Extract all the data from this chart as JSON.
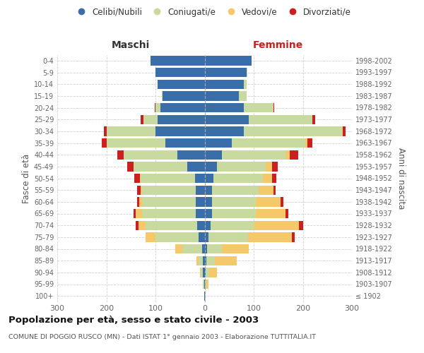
{
  "age_groups": [
    "100+",
    "95-99",
    "90-94",
    "85-89",
    "80-84",
    "75-79",
    "70-74",
    "65-69",
    "60-64",
    "55-59",
    "50-54",
    "45-49",
    "40-44",
    "35-39",
    "30-34",
    "25-29",
    "20-24",
    "15-19",
    "10-14",
    "5-9",
    "0-4"
  ],
  "birth_years": [
    "≤ 1902",
    "1903-1907",
    "1908-1912",
    "1913-1917",
    "1918-1922",
    "1923-1927",
    "1928-1932",
    "1933-1937",
    "1938-1942",
    "1943-1947",
    "1948-1952",
    "1953-1957",
    "1958-1962",
    "1963-1967",
    "1968-1972",
    "1973-1977",
    "1978-1982",
    "1983-1987",
    "1988-1992",
    "1993-1997",
    "1998-2002"
  ],
  "male_celibi": [
    1,
    1,
    3,
    4,
    5,
    12,
    15,
    18,
    18,
    18,
    20,
    35,
    55,
    80,
    100,
    95,
    90,
    85,
    95,
    100,
    110
  ],
  "male_coniugati": [
    0,
    2,
    5,
    8,
    40,
    88,
    105,
    110,
    110,
    110,
    110,
    110,
    110,
    120,
    100,
    30,
    10,
    2,
    1,
    0,
    0
  ],
  "male_vedovi": [
    0,
    0,
    2,
    5,
    15,
    20,
    15,
    12,
    5,
    2,
    1,
    0,
    0,
    0,
    0,
    0,
    0,
    0,
    0,
    0,
    0
  ],
  "male_divorziati": [
    0,
    0,
    0,
    0,
    0,
    0,
    5,
    5,
    5,
    8,
    12,
    12,
    12,
    10,
    5,
    5,
    2,
    0,
    0,
    0,
    0
  ],
  "female_nubili": [
    1,
    1,
    2,
    3,
    5,
    8,
    12,
    15,
    15,
    15,
    18,
    25,
    35,
    55,
    80,
    90,
    80,
    70,
    80,
    85,
    95
  ],
  "female_coniugate": [
    0,
    2,
    8,
    18,
    30,
    80,
    90,
    90,
    90,
    95,
    100,
    100,
    130,
    150,
    200,
    130,
    60,
    15,
    5,
    2,
    0
  ],
  "female_vedove": [
    0,
    5,
    15,
    45,
    55,
    90,
    90,
    60,
    50,
    30,
    20,
    12,
    8,
    5,
    2,
    0,
    0,
    0,
    0,
    0,
    0
  ],
  "female_divorziate": [
    0,
    0,
    0,
    0,
    0,
    5,
    8,
    5,
    5,
    5,
    8,
    12,
    18,
    10,
    5,
    5,
    2,
    0,
    0,
    0,
    0
  ],
  "color_celibi": "#3a6ea8",
  "color_coniugati": "#c8daa0",
  "color_vedovi": "#f5c86a",
  "color_divorziati": "#cc2020",
  "title": "Popolazione per età, sesso e stato civile - 2003",
  "subtitle": "COMUNE DI POGGIO RUSCO (MN) - Dati ISTAT 1° gennaio 2003 - Elaborazione TUTTITALIA.IT",
  "xlabel_left": "Maschi",
  "xlabel_right": "Femmine",
  "ylabel_left": "Fasce di età",
  "ylabel_right": "Anni di nascita",
  "xlim": 300,
  "bg_color": "#ffffff",
  "grid_color": "#cccccc"
}
